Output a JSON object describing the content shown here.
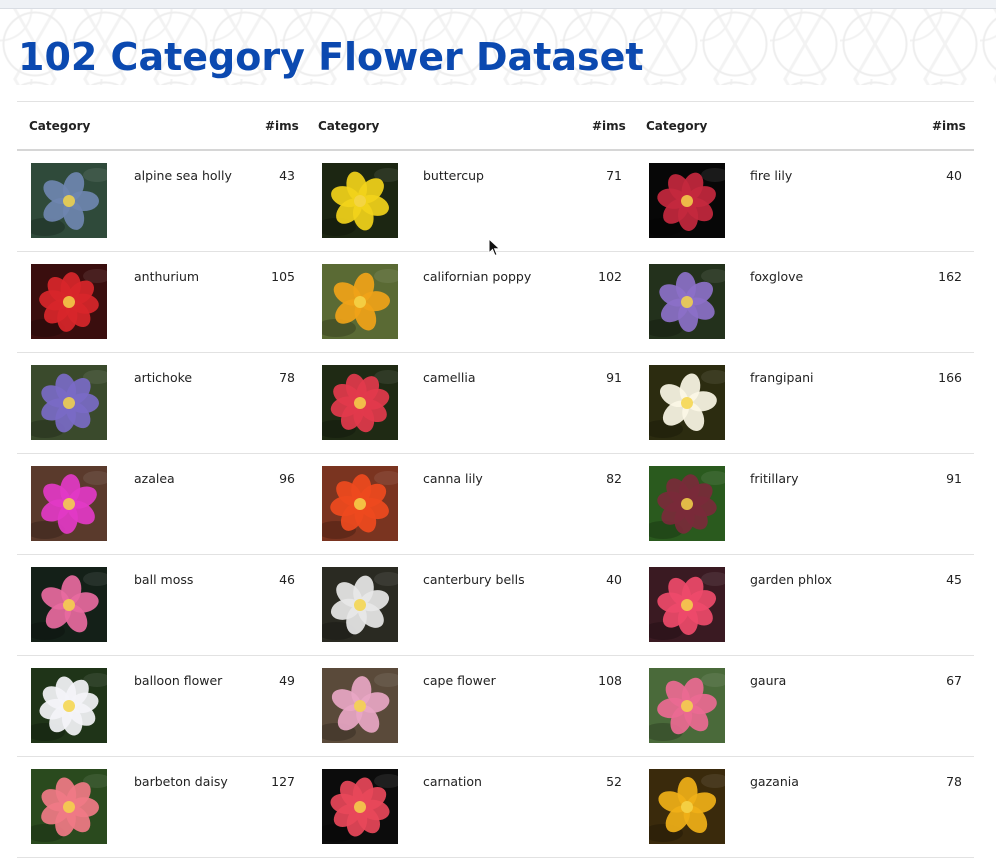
{
  "page": {
    "title": "102 Category Flower Dataset"
  },
  "table": {
    "headers": [
      {
        "category": "Category",
        "count": "#ims"
      },
      {
        "category": "Category",
        "count": "#ims"
      },
      {
        "category": "Category",
        "count": "#ims"
      }
    ],
    "rows": [
      [
        {
          "name": "alpine sea holly",
          "count": "43",
          "thumb_icon": "flower-photo-icon",
          "color": "#6f86b0",
          "bg": "#2f4a3a"
        },
        {
          "name": "buttercup",
          "count": "71",
          "thumb_icon": "flower-photo-icon",
          "color": "#f2d21a",
          "bg": "#1c2612"
        },
        {
          "name": "fire lily",
          "count": "40",
          "thumb_icon": "flower-photo-icon",
          "color": "#c4283e",
          "bg": "#070707"
        }
      ],
      [
        {
          "name": "anthurium",
          "count": "105",
          "thumb_icon": "flower-photo-icon",
          "color": "#d8262a",
          "bg": "#3a0e0e"
        },
        {
          "name": "californian poppy",
          "count": "102",
          "thumb_icon": "flower-photo-icon",
          "color": "#f0a318",
          "bg": "#5a6a34"
        },
        {
          "name": "foxglove",
          "count": "162",
          "thumb_icon": "flower-photo-icon",
          "color": "#8c70c8",
          "bg": "#23311c"
        }
      ],
      [
        {
          "name": "artichoke",
          "count": "78",
          "thumb_icon": "flower-photo-icon",
          "color": "#7a6ac6",
          "bg": "#3a4a2c"
        },
        {
          "name": "camellia",
          "count": "91",
          "thumb_icon": "flower-photo-icon",
          "color": "#e23a4c",
          "bg": "#1f2a14"
        },
        {
          "name": "frangipani",
          "count": "166",
          "thumb_icon": "flower-photo-icon",
          "color": "#fbf7e6",
          "bg": "#2c2c10"
        }
      ],
      [
        {
          "name": "azalea",
          "count": "96",
          "thumb_icon": "flower-photo-icon",
          "color": "#e23ac6",
          "bg": "#5a3a2c"
        },
        {
          "name": "canna lily",
          "count": "82",
          "thumb_icon": "flower-photo-icon",
          "color": "#ee4a1e",
          "bg": "#7a3420"
        },
        {
          "name": "fritillary",
          "count": "91",
          "thumb_icon": "flower-photo-icon",
          "color": "#7a2a3a",
          "bg": "#2a5a1e"
        }
      ],
      [
        {
          "name": "ball moss",
          "count": "46",
          "thumb_icon": "flower-photo-icon",
          "color": "#e86aa0",
          "bg": "#142018"
        },
        {
          "name": "canterbury bells",
          "count": "40",
          "thumb_icon": "flower-photo-icon",
          "color": "#e8e8e8",
          "bg": "#2a2a22"
        },
        {
          "name": "garden phlox",
          "count": "45",
          "thumb_icon": "flower-photo-icon",
          "color": "#ee4a6a",
          "bg": "#3a1a22"
        }
      ],
      [
        {
          "name": "balloon flower",
          "count": "49",
          "thumb_icon": "flower-photo-icon",
          "color": "#f4f4f8",
          "bg": "#1f3418"
        },
        {
          "name": "cape flower",
          "count": "108",
          "thumb_icon": "flower-photo-icon",
          "color": "#e8a6c4",
          "bg": "#5a4a3a"
        },
        {
          "name": "gaura",
          "count": "67",
          "thumb_icon": "flower-photo-icon",
          "color": "#ea6a92",
          "bg": "#4a6a3a"
        }
      ],
      [
        {
          "name": "barbeton daisy",
          "count": "127",
          "thumb_icon": "flower-photo-icon",
          "color": "#f07a86",
          "bg": "#2a4a1e"
        },
        {
          "name": "carnation",
          "count": "52",
          "thumb_icon": "flower-photo-icon",
          "color": "#e8485a",
          "bg": "#0c0c0c"
        },
        {
          "name": "gazania",
          "count": "78",
          "thumb_icon": "flower-photo-icon",
          "color": "#f0b018",
          "bg": "#3a2a0c"
        }
      ]
    ]
  }
}
